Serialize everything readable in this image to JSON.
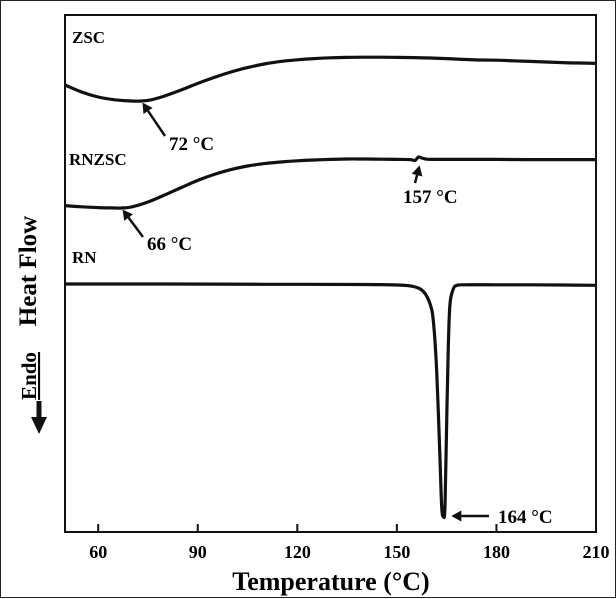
{
  "chart_data": {
    "type": "line",
    "xlabel": "Temperature (°C)",
    "ylabel": "Heat Flow",
    "ylabel_prefix": "Endo",
    "xlim": [
      50,
      210
    ],
    "xticks": [
      60,
      90,
      120,
      150,
      180,
      210
    ],
    "series": [
      {
        "name": "ZSC",
        "x": [
          50,
          55,
          60,
          65,
          70,
          73,
          76,
          80,
          85,
          90,
          95,
          100,
          105,
          110,
          115,
          120,
          125,
          130,
          135,
          140,
          145,
          150,
          155,
          160,
          165,
          170,
          175,
          180,
          185,
          190,
          195,
          200,
          205,
          210
        ],
        "y": [
          0.8,
          0.45,
          0.2,
          0.06,
          0.0,
          0.0,
          0.06,
          0.25,
          0.55,
          0.88,
          1.18,
          1.45,
          1.67,
          1.85,
          1.98,
          2.06,
          2.12,
          2.16,
          2.18,
          2.19,
          2.19,
          2.18,
          2.17,
          2.15,
          2.12,
          2.08,
          2.05,
          2.04,
          2.01,
          1.98,
          1.95,
          1.92,
          1.9,
          1.88
        ]
      },
      {
        "name": "RNZSC",
        "x": [
          50,
          55,
          60,
          65,
          67,
          70,
          75,
          80,
          85,
          90,
          95,
          100,
          105,
          110,
          115,
          120,
          125,
          130,
          135,
          140,
          145,
          150,
          154,
          155.5,
          156.5,
          157.5,
          159,
          162,
          170,
          180,
          190,
          200,
          210
        ],
        "y": [
          0.12,
          0.06,
          0.02,
          0.0,
          0.0,
          0.05,
          0.3,
          0.65,
          1.02,
          1.38,
          1.68,
          1.92,
          2.1,
          2.22,
          2.3,
          2.36,
          2.4,
          2.43,
          2.45,
          2.45,
          2.44,
          2.43,
          2.42,
          2.38,
          2.55,
          2.5,
          2.44,
          2.43,
          2.43,
          2.43,
          2.42,
          2.42,
          2.42
        ]
      },
      {
        "name": "RN",
        "x": [
          50,
          80,
          110,
          140,
          150,
          155,
          158,
          160,
          161,
          162,
          163,
          163.5,
          164,
          164.5,
          165,
          165.5,
          166,
          167,
          168,
          170,
          180,
          190,
          200,
          210
        ],
        "y": [
          0.0,
          0.0,
          -0.01,
          -0.02,
          -0.04,
          -0.1,
          -0.3,
          -0.8,
          -1.5,
          -3.5,
          -7.0,
          -8.9,
          -9.3,
          -8.9,
          -5.5,
          -2.5,
          -0.8,
          -0.2,
          -0.06,
          -0.03,
          -0.03,
          -0.03,
          -0.04,
          -0.05
        ]
      }
    ],
    "series_labels": [
      "ZSC",
      "RNZSC",
      "RN"
    ],
    "annotations": [
      {
        "text": "72 °C",
        "series": "ZSC",
        "x": 73
      },
      {
        "text": "66 °C",
        "series": "RNZSC",
        "x": 67
      },
      {
        "text": "157 °C",
        "series": "RNZSC",
        "x": 157
      },
      {
        "text": "164 °C",
        "series": "RN",
        "x": 164
      }
    ],
    "grid": false,
    "legend": "none"
  }
}
